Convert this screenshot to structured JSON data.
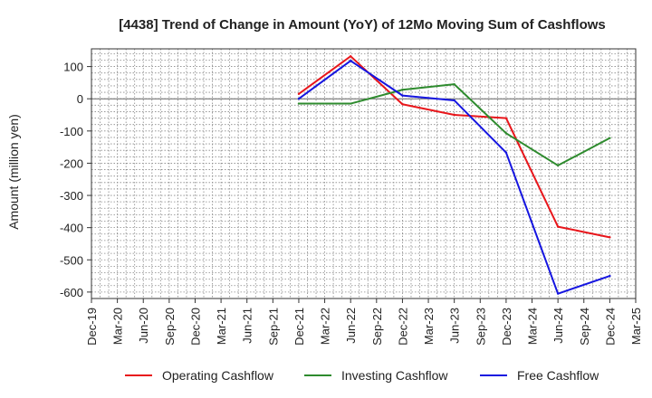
{
  "chart_data": {
    "type": "line",
    "title": "[4438]  Trend of Change in Amount (YoY) of 12Mo Moving Sum of Cashflows",
    "xlabel": "",
    "ylabel": "Amount (million yen)",
    "ylim": [
      -620,
      155
    ],
    "yticks": [
      100,
      0,
      -100,
      -200,
      -300,
      -400,
      -500,
      -600
    ],
    "ytick_labels": [
      "100",
      "0",
      "-100",
      "-200",
      "-300",
      "-400",
      "-500",
      "-600"
    ],
    "categories": [
      "Dec-19",
      "Mar-20",
      "Jun-20",
      "Sep-20",
      "Dec-20",
      "Mar-21",
      "Jun-21",
      "Sep-21",
      "Dec-21",
      "Mar-22",
      "Jun-22",
      "Sep-22",
      "Dec-22",
      "Mar-23",
      "Jun-23",
      "Sep-23",
      "Dec-23",
      "Mar-24",
      "Jun-24",
      "Sep-24",
      "Dec-24",
      "Mar-25"
    ],
    "grid": true,
    "legend_position": "bottom",
    "series": [
      {
        "name": "Operating Cashflow",
        "color": "#e8161b",
        "values": [
          null,
          null,
          null,
          null,
          null,
          null,
          null,
          null,
          15,
          null,
          132,
          null,
          -17,
          null,
          -50,
          null,
          -60,
          null,
          -397,
          null,
          -430,
          null
        ]
      },
      {
        "name": "Investing Cashflow",
        "color": "#2e8b2e",
        "values": [
          null,
          null,
          null,
          null,
          null,
          null,
          null,
          null,
          -15,
          null,
          -15,
          null,
          28,
          null,
          45,
          null,
          -107,
          null,
          -207,
          null,
          -122,
          null
        ]
      },
      {
        "name": "Free Cashflow",
        "color": "#1515e0",
        "values": [
          null,
          null,
          null,
          null,
          null,
          null,
          null,
          null,
          0,
          null,
          118,
          null,
          10,
          null,
          -5,
          null,
          -167,
          null,
          -605,
          null,
          -550,
          null
        ]
      }
    ]
  }
}
